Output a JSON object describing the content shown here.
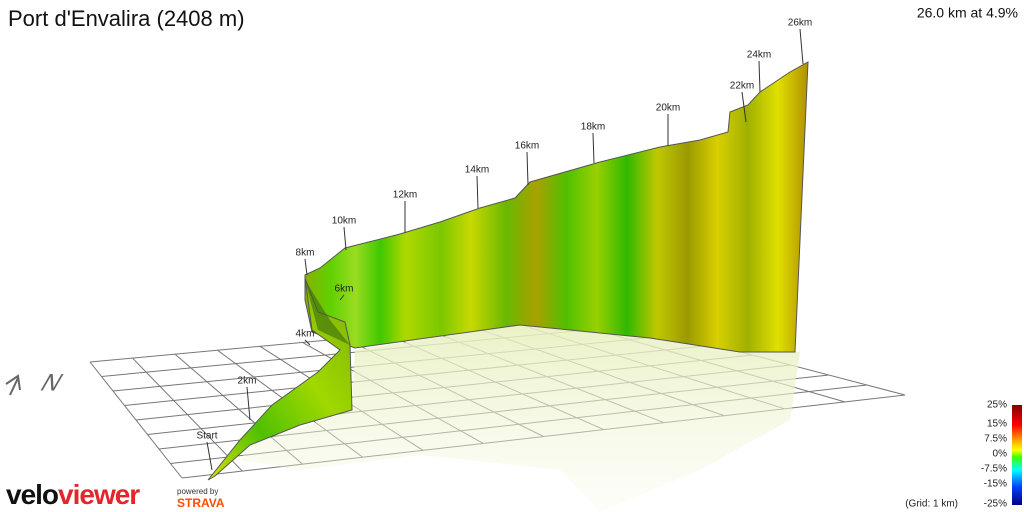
{
  "header": {
    "title": "Port d'Envalira (2408 m)",
    "summary": "26.0 km at 4.9%"
  },
  "compass": "N",
  "markers": [
    "Start",
    "2km",
    "4km",
    "6km",
    "8km",
    "10km",
    "12km",
    "14km",
    "16km",
    "18km",
    "20km",
    "22km",
    "24km",
    "26km"
  ],
  "legend": {
    "labels": [
      "25%",
      "15%",
      "7.5%",
      "0%",
      "-7.5%",
      "-15%",
      "-25%"
    ],
    "grid_note": "(Grid: 1 km)"
  },
  "branding": {
    "logo_a": "velo",
    "logo_b": "viewer",
    "powered": "powered by",
    "partner": "STRAVA"
  }
}
